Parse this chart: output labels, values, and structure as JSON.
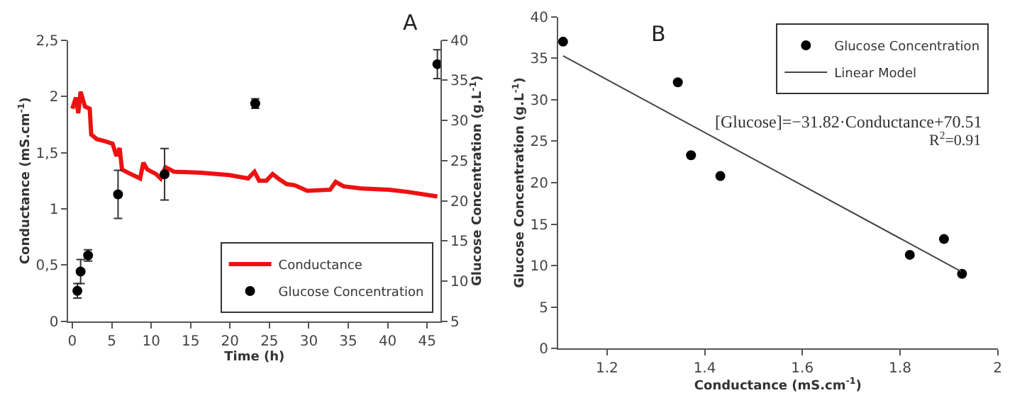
{
  "chart_data": [
    {
      "type": "line",
      "title": "A",
      "xlabel": "Time (h)",
      "ylabel": "Conductance (mS.cm$^{-1}$)",
      "y2label": "Glucose Concentration (g.L$^{-1}$)",
      "xlim": [
        -0.5,
        46.7
      ],
      "xticks": [
        0,
        5,
        10,
        15,
        20,
        25,
        30,
        35,
        40,
        45
      ],
      "ylim": [
        0,
        2.5
      ],
      "yticks": [
        0,
        {
          "value": 0.5,
          "label": "0,5"
        },
        1,
        {
          "value": 1.5,
          "label": "1,5"
        },
        2,
        {
          "value": 2.5,
          "label": "2,5"
        }
      ],
      "y2lim": [
        5,
        40
      ],
      "y2ticks": [
        5,
        10,
        15,
        20,
        25,
        30,
        35,
        40
      ],
      "legend": "bottom right",
      "series": [
        {
          "name": "Conductance",
          "color": "#ee1111",
          "x": [
            0,
            0.46,
            0.75,
            1.05,
            1.6,
            2.2,
            2.4,
            3.1,
            4.2,
            5.1,
            5.6,
            6.0,
            6.3,
            7.1,
            8.6,
            9.0,
            9.5,
            10.6,
            11.2,
            11.8,
            12.9,
            16.4,
            19.9,
            22.3,
            23.1,
            23.7,
            24.6,
            25.4,
            26.3,
            27.2,
            28.2,
            29.8,
            32.7,
            33.4,
            34.4,
            36.8,
            40.2,
            42.6,
            46.3
          ],
          "values": [
            1.89,
            1.99,
            1.85,
            2.04,
            1.91,
            1.89,
            1.66,
            1.62,
            1.6,
            1.58,
            1.47,
            1.54,
            1.35,
            1.32,
            1.27,
            1.41,
            1.35,
            1.31,
            1.27,
            1.37,
            1.33,
            1.32,
            1.3,
            1.27,
            1.33,
            1.25,
            1.25,
            1.31,
            1.26,
            1.22,
            1.21,
            1.16,
            1.17,
            1.24,
            1.2,
            1.18,
            1.17,
            1.15,
            1.11
          ]
        },
        {
          "name": "Glucose Concentration",
          "type": "scatter",
          "axis": "y2",
          "color": "#000000",
          "x": [
            0.64,
            1.05,
            2.0,
            5.8,
            11.7,
            23.2,
            46.3
          ],
          "values": [
            8.8,
            11.2,
            13.2,
            20.8,
            23.3,
            32.1,
            37.0
          ],
          "errors": [
            0.9,
            1.5,
            0.7,
            3.0,
            3.2,
            0.6,
            1.8
          ]
        }
      ]
    },
    {
      "type": "scatter",
      "title": "B",
      "xlabel": "Conductance (mS.cm$^{-1}$)",
      "ylabel": "Glucose Concentration (g.L$^{-1}$)",
      "xlim": [
        1.1,
        2
      ],
      "xticks": [
        1.2,
        1.4,
        1.6,
        1.8,
        2
      ],
      "ylim": [
        0,
        40
      ],
      "yticks": [
        0,
        5,
        10,
        15,
        20,
        25,
        30,
        35,
        40
      ],
      "legend": "top right",
      "annotations": [
        "[Glucose]=−31.82·Conductance+70.51",
        "R$^{2}$=0.91"
      ],
      "series": [
        {
          "name": "Glucose Concentration",
          "color": "#000000",
          "x": [
            1.11,
            1.345,
            1.372,
            1.432,
            1.82,
            1.89,
            1.927
          ],
          "values": [
            37.0,
            32.1,
            23.3,
            20.8,
            11.3,
            13.2,
            9.0
          ]
        },
        {
          "name": "Linear Model",
          "type": "line",
          "color": "#444444",
          "x": [
            1.11,
            1.925
          ],
          "values": [
            35.3,
            9.3
          ]
        }
      ]
    }
  ]
}
